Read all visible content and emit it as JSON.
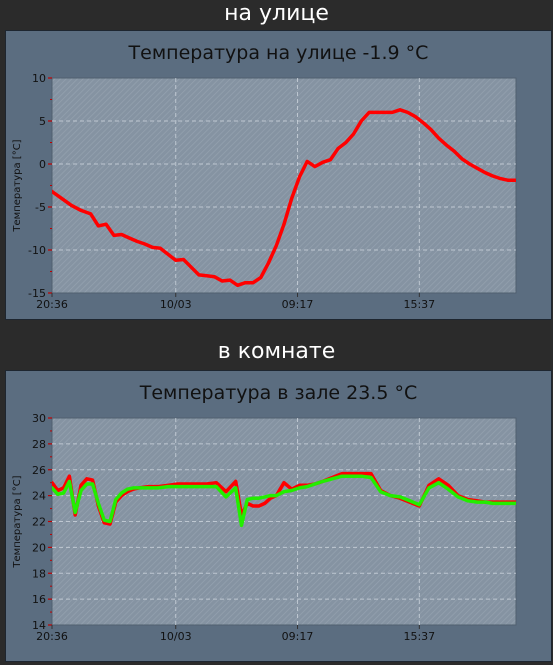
{
  "sections": [
    {
      "heading": "на улице"
    },
    {
      "heading": "в комнате"
    }
  ],
  "colors": {
    "page_bg": "#2b2b2b",
    "panel_bg": "#5b6d80",
    "plot_bg": "#8593a2",
    "grid": "#cdd5dd",
    "text": "#111111",
    "tick_mark": "#c00000",
    "series_red": "#ff0000",
    "series_green": "#22ee00"
  },
  "chart_data": [
    {
      "type": "line",
      "title": "Температура на улице -1.9 °C",
      "xlabel": "",
      "ylabel": "Температура [°C]",
      "ylim": [
        -15,
        10
      ],
      "yticks": [
        -15,
        -10,
        -5,
        0,
        5,
        10
      ],
      "xlim": [
        0,
        24
      ],
      "xtick_labels": [
        "20:36",
        "10/03",
        "09:17",
        "15:37"
      ],
      "xtick_positions": [
        0,
        6.4,
        12.7,
        19.0
      ],
      "grid": true,
      "x": [
        0,
        0.5,
        1.0,
        1.5,
        2.0,
        2.4,
        2.8,
        3.2,
        3.6,
        4.0,
        4.4,
        4.8,
        5.2,
        5.6,
        6.0,
        6.4,
        6.8,
        7.2,
        7.6,
        8.0,
        8.4,
        8.8,
        9.2,
        9.6,
        10.0,
        10.4,
        10.8,
        11.2,
        11.6,
        12.0,
        12.4,
        12.8,
        13.2,
        13.6,
        14.0,
        14.4,
        14.8,
        15.2,
        15.6,
        16.0,
        16.4,
        16.8,
        17.2,
        17.6,
        18.0,
        18.4,
        18.8,
        19.2,
        19.6,
        20.0,
        20.4,
        20.8,
        21.2,
        21.6,
        22.0,
        22.4,
        22.8,
        23.2,
        23.6,
        24.0
      ],
      "series": [
        {
          "values": [
            -3.2,
            -4.0,
            -4.8,
            -5.4,
            -5.8,
            -7.2,
            -7.0,
            -8.3,
            -8.2,
            -8.6,
            -9.0,
            -9.3,
            -9.7,
            -9.8,
            -10.5,
            -11.2,
            -11.1,
            -12.0,
            -12.9,
            -13.0,
            -13.1,
            -13.6,
            -13.5,
            -14.1,
            -13.8,
            -13.8,
            -13.2,
            -11.5,
            -9.5,
            -7.0,
            -4.0,
            -1.5,
            0.3,
            -0.3,
            0.2,
            0.5,
            1.8,
            2.5,
            3.5,
            5.0,
            6.0,
            6.0,
            6.0,
            6.0,
            6.3,
            6.0,
            5.5,
            4.8,
            4.0,
            3.0,
            2.2,
            1.5,
            0.6,
            0.0,
            -0.5,
            -1.0,
            -1.4,
            -1.7,
            -1.9,
            -1.9
          ],
          "color": "#ff0000"
        }
      ]
    },
    {
      "type": "line",
      "title": "Температура в зале 23.5 °C",
      "xlabel": "",
      "ylabel": "Температура [°C]",
      "ylim": [
        14,
        30
      ],
      "yticks": [
        14,
        16,
        18,
        20,
        22,
        24,
        26,
        28,
        30
      ],
      "xlim": [
        0,
        24
      ],
      "xtick_labels": [
        "20:36",
        "10/03",
        "09:17",
        "15:37"
      ],
      "xtick_positions": [
        0,
        6.4,
        12.7,
        19.0
      ],
      "grid": true,
      "x": [
        0,
        0.3,
        0.6,
        0.9,
        1.2,
        1.5,
        1.8,
        2.1,
        2.4,
        2.7,
        3.0,
        3.3,
        3.6,
        3.9,
        4.2,
        4.5,
        5.0,
        5.5,
        6.0,
        6.5,
        7.0,
        7.5,
        8.0,
        8.5,
        9.0,
        9.5,
        9.8,
        10.1,
        10.4,
        10.7,
        11.0,
        11.3,
        11.6,
        12.0,
        12.4,
        12.8,
        13.2,
        13.6,
        14.0,
        14.5,
        15.0,
        15.5,
        16.0,
        16.5,
        17.0,
        17.5,
        18.0,
        18.5,
        19.0,
        19.5,
        20.0,
        20.5,
        21.0,
        21.5,
        22.0,
        22.4,
        22.8,
        23.2,
        23.6,
        24.0
      ],
      "series": [
        {
          "values": [
            25.0,
            24.4,
            24.6,
            25.5,
            22.5,
            24.8,
            25.3,
            25.2,
            23.2,
            21.9,
            21.8,
            23.5,
            24.0,
            24.3,
            24.5,
            24.6,
            24.7,
            24.7,
            24.8,
            24.9,
            24.9,
            24.9,
            24.9,
            25.0,
            24.3,
            25.1,
            22.5,
            23.4,
            23.2,
            23.2,
            23.4,
            23.8,
            24.0,
            25.0,
            24.5,
            24.8,
            24.8,
            24.9,
            25.1,
            25.4,
            25.7,
            25.7,
            25.7,
            25.7,
            24.4,
            24.0,
            23.8,
            23.5,
            23.2,
            24.8,
            25.3,
            24.8,
            24.0,
            23.7,
            23.6,
            23.5,
            23.5,
            23.5,
            23.5,
            23.5
          ],
          "color": "#ff0000"
        },
        {
          "values": [
            24.6,
            24.1,
            24.2,
            25.1,
            22.7,
            24.4,
            24.9,
            24.9,
            23.4,
            22.1,
            22.0,
            23.7,
            24.2,
            24.5,
            24.6,
            24.6,
            24.6,
            24.6,
            24.7,
            24.7,
            24.7,
            24.7,
            24.7,
            24.7,
            23.9,
            24.6,
            21.7,
            23.7,
            23.8,
            23.8,
            23.9,
            24.0,
            24.0,
            24.3,
            24.4,
            24.6,
            24.7,
            24.9,
            25.1,
            25.3,
            25.5,
            25.5,
            25.5,
            25.4,
            24.3,
            24.0,
            23.9,
            23.6,
            23.3,
            24.6,
            25.0,
            24.5,
            23.9,
            23.6,
            23.5,
            23.5,
            23.4,
            23.4,
            23.4,
            23.4
          ],
          "color": "#22ee00"
        }
      ]
    }
  ]
}
